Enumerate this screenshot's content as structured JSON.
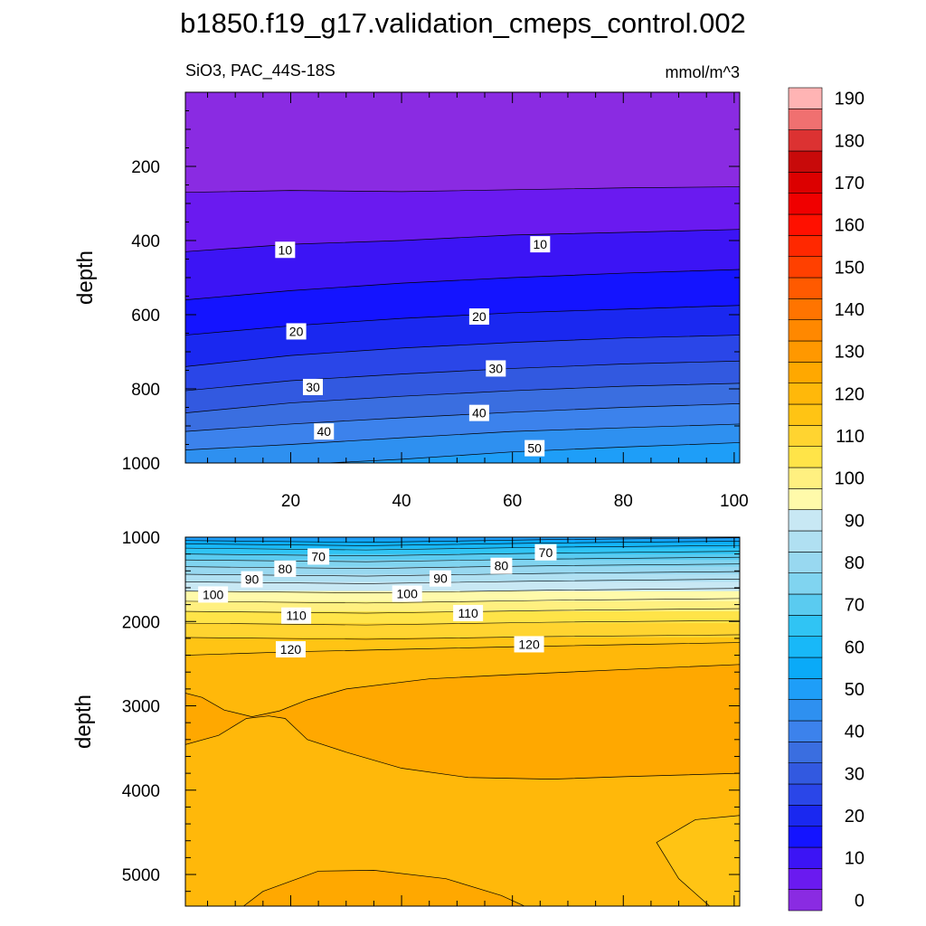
{
  "title": "b1850.f19_g17.validation_cmeps_control.002",
  "subtitle_left": "SiO3, PAC_44S-18S",
  "subtitle_right": "mmol/m^3",
  "chart_data": [
    {
      "type": "contour",
      "panel": "upper",
      "ylabel": "depth",
      "xlabel": "",
      "xlim": [
        1,
        101
      ],
      "ylim": [
        1000,
        0
      ],
      "x_ticks": [
        "20",
        "40",
        "60",
        "80",
        "100"
      ],
      "x_tick_values": [
        20,
        40,
        60,
        80,
        100
      ],
      "y_ticks": [
        "200",
        "400",
        "600",
        "800",
        "1000"
      ],
      "y_tick_values": [
        200,
        400,
        600,
        800,
        1000
      ],
      "bands_upper_value": [
        0,
        5,
        10,
        15,
        20,
        25,
        30,
        35,
        40,
        45,
        50,
        55
      ],
      "contours": [
        {
          "level": 5,
          "x": [
            1,
            20,
            40,
            60,
            80,
            101
          ],
          "y": [
            270,
            265,
            268,
            263,
            258,
            255
          ]
        },
        {
          "level": 10,
          "x": [
            1,
            20,
            40,
            60,
            80,
            101
          ],
          "y": [
            430,
            410,
            400,
            385,
            378,
            370
          ]
        },
        {
          "level": 15,
          "x": [
            1,
            20,
            40,
            60,
            80,
            101
          ],
          "y": [
            560,
            535,
            515,
            500,
            488,
            478
          ]
        },
        {
          "level": 20,
          "x": [
            1,
            20,
            40,
            60,
            80,
            101
          ],
          "y": [
            655,
            630,
            610,
            595,
            585,
            575
          ]
        },
        {
          "level": 25,
          "x": [
            1,
            20,
            40,
            60,
            80,
            101
          ],
          "y": [
            740,
            710,
            690,
            675,
            663,
            655
          ]
        },
        {
          "level": 30,
          "x": [
            1,
            20,
            40,
            60,
            80,
            101
          ],
          "y": [
            805,
            778,
            760,
            745,
            733,
            725
          ]
        },
        {
          "level": 35,
          "x": [
            1,
            20,
            40,
            60,
            80,
            101
          ],
          "y": [
            865,
            838,
            820,
            805,
            793,
            785
          ]
        },
        {
          "level": 40,
          "x": [
            1,
            20,
            40,
            60,
            80,
            101
          ],
          "y": [
            915,
            895,
            878,
            863,
            850,
            840
          ]
        },
        {
          "level": 45,
          "x": [
            1,
            20,
            40,
            60,
            80,
            101
          ],
          "y": [
            965,
            950,
            932,
            915,
            905,
            895
          ]
        },
        {
          "level": 50,
          "x": [
            1,
            20,
            40,
            60,
            80,
            101
          ],
          "y": [
            1015,
            1005,
            990,
            970,
            957,
            945
          ]
        }
      ],
      "labels": [
        {
          "text": "10",
          "x": 19,
          "y": 425
        },
        {
          "text": "10",
          "x": 65,
          "y": 410
        },
        {
          "text": "20",
          "x": 21,
          "y": 645
        },
        {
          "text": "20",
          "x": 54,
          "y": 605
        },
        {
          "text": "30",
          "x": 24,
          "y": 795
        },
        {
          "text": "30",
          "x": 57,
          "y": 745
        },
        {
          "text": "40",
          "x": 26,
          "y": 915
        },
        {
          "text": "40",
          "x": 54,
          "y": 865
        },
        {
          "text": "50",
          "x": 64,
          "y": 960
        }
      ]
    },
    {
      "type": "contour",
      "panel": "lower",
      "ylabel": "depth",
      "xlabel": "",
      "xlim": [
        1,
        101
      ],
      "ylim": [
        5375,
        1000
      ],
      "x_ticks": [],
      "y_ticks": [
        "1000",
        "2000",
        "3000",
        "4000",
        "5000"
      ],
      "y_tick_values": [
        1000,
        2000,
        3000,
        4000,
        5000
      ],
      "contours_flat": [
        {
          "level": 55,
          "depth": 1040
        },
        {
          "level": 60,
          "depth": 1080
        },
        {
          "level": 65,
          "depth": 1130
        },
        {
          "level": 70,
          "depth": 1200
        },
        {
          "level": 75,
          "depth": 1270
        },
        {
          "level": 80,
          "depth": 1350
        },
        {
          "level": 85,
          "depth": 1440
        },
        {
          "level": 90,
          "depth": 1530
        },
        {
          "level": 95,
          "depth": 1640
        },
        {
          "level": 100,
          "depth": 1760
        },
        {
          "level": 105,
          "depth": 1880
        },
        {
          "level": 110,
          "depth": 2020
        },
        {
          "level": 115,
          "depth": 2190
        }
      ],
      "contour_120": {
        "x": [
          1,
          20,
          40,
          60,
          80,
          101
        ],
        "y": [
          2400,
          2360,
          2330,
          2300,
          2275,
          2250
        ]
      },
      "labels": [
        {
          "text": "70",
          "x": 25,
          "y": 1230
        },
        {
          "text": "70",
          "x": 66,
          "y": 1180
        },
        {
          "text": "80",
          "x": 19,
          "y": 1375
        },
        {
          "text": "80",
          "x": 58,
          "y": 1340
        },
        {
          "text": "90",
          "x": 13,
          "y": 1500
        },
        {
          "text": "90",
          "x": 47,
          "y": 1490
        },
        {
          "text": "100",
          "x": 6,
          "y": 1680
        },
        {
          "text": "100",
          "x": 41,
          "y": 1670
        },
        {
          "text": "110",
          "x": 21,
          "y": 1930
        },
        {
          "text": "110",
          "x": 52,
          "y": 1900
        },
        {
          "text": "120",
          "x": 20,
          "y": 2330
        },
        {
          "text": "120",
          "x": 63,
          "y": 2270
        }
      ]
    }
  ],
  "colorbar": {
    "labels": [
      "0",
      "10",
      "20",
      "30",
      "40",
      "50",
      "60",
      "70",
      "80",
      "90",
      "100",
      "110",
      "120",
      "130",
      "140",
      "150",
      "160",
      "170",
      "180",
      "190"
    ],
    "colors": [
      "#8a2be2",
      "#6a1af0",
      "#3c14f5",
      "#1414ff",
      "#1a28f0",
      "#2a46e8",
      "#3259e0",
      "#3a6ee0",
      "#3c82ec",
      "#2e90f0",
      "#1e9ef8",
      "#0aaaf8",
      "#18b8f8",
      "#30c4f4",
      "#5acbf0",
      "#80d4f0",
      "#98d8f0",
      "#b0e0f2",
      "#c8e8f4",
      "#fffaaa",
      "#fff080",
      "#ffe448",
      "#ffd430",
      "#ffc414",
      "#ffb80a",
      "#ffa800",
      "#ff9800",
      "#ff8800",
      "#ff7400",
      "#ff5a00",
      "#ff4000",
      "#ff2800",
      "#ff1000",
      "#f00000",
      "#dc0000",
      "#c80a0a",
      "#dc3232",
      "#f07070",
      "#ffb4b4"
    ]
  }
}
